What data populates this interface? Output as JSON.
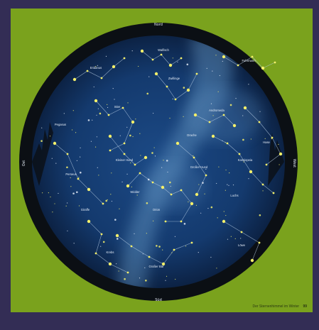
{
  "colors": {
    "frame": "#332d55",
    "panel": "#7aa21d",
    "rim": "#0b0f14",
    "sky_center": "#183f78",
    "sky_edge": "#0d2346",
    "milky_way": "#5d8fbd",
    "star": "#f4f06a",
    "line": "#b8cde4",
    "label": "#e4ecf6"
  },
  "compass": {
    "north": "Nord",
    "south": "Süd",
    "east": "Ost",
    "west": "West"
  },
  "caption": "Der Sternenhimmel im Winter",
  "page_number": "99",
  "constellation_labels": [
    "Orion",
    "Stier",
    "Zwillinge",
    "Fuhrmann",
    "Perseus",
    "Kassiopeia",
    "Großer Bär",
    "Krebs",
    "Löwe",
    "Walfisch",
    "Eridanus",
    "Hase",
    "Großer Hund",
    "Kleiner Hund",
    "Andromeda",
    "Pegasus",
    "Drache",
    "Giraffe",
    "Luchs",
    "Widder"
  ]
}
